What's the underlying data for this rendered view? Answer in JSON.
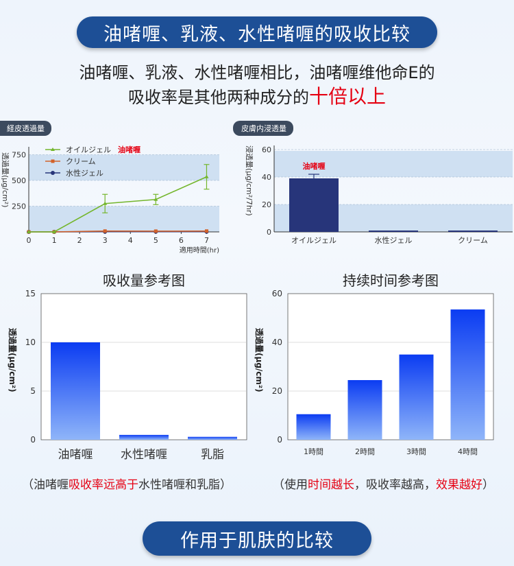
{
  "header": {
    "title": "油啫喱、乳液、水性啫喱的吸收比较",
    "line1": "油啫喱、乳液、水性啫喱相比，油啫喱维他命E的",
    "line2_a": "吸收率是其他两种成分的",
    "line2_b": "十倍以上"
  },
  "footer": {
    "title": "作用于肌肤的比较"
  },
  "captions": {
    "left_a": "（油啫喱",
    "left_b": "吸收率远高于",
    "left_c": "水性啫喱和乳脂）",
    "right_a": "（使用",
    "right_b": "时间越长",
    "right_c": "，吸收率越高，",
    "right_d": "效果越好",
    "right_e": "）"
  },
  "colors": {
    "pill": "#1d4f96",
    "highlight": "#e50012",
    "bar_navy": "#27357a",
    "bar_blue": "#1a46f0"
  },
  "chart_data": [
    {
      "id": "c1",
      "type": "line",
      "tag": "経皮透過量",
      "ylabel": "透過量(μg/cm²)",
      "xlabel": "適用時間(hr)",
      "x_ticks": [
        0,
        1,
        2,
        3,
        4,
        5,
        6,
        7
      ],
      "y_ticks": [
        250,
        500,
        750
      ],
      "xlim": [
        0,
        7.5
      ],
      "ylim": [
        0,
        800
      ],
      "series": [
        {
          "name": "オイルジェル",
          "name_note": "油啫喱",
          "color": "#74b62c",
          "marker": "triangle",
          "x": [
            0,
            1,
            3,
            5,
            7
          ],
          "y": [
            0,
            0,
            275,
            315,
            535
          ],
          "err": [
            0,
            0,
            90,
            50,
            120
          ]
        },
        {
          "name": "クリーム",
          "color": "#d2622b",
          "marker": "square",
          "x": [
            0,
            1,
            3,
            5,
            7
          ],
          "y": [
            0,
            0,
            8,
            7,
            8
          ],
          "err": [
            0,
            0,
            0,
            0,
            0
          ]
        },
        {
          "name": "水性ジェル",
          "color": "#27357a",
          "marker": "circle",
          "x": [
            0,
            1,
            3,
            5,
            7
          ],
          "y": [
            0,
            0,
            2,
            2,
            2
          ],
          "err": [
            0,
            0,
            0,
            0,
            0
          ]
        }
      ]
    },
    {
      "id": "c2",
      "type": "bar",
      "tag": "皮膚内浸透量",
      "ylabel": "浸透量(μg/cm²/7hr)",
      "categories": [
        "オイルジェル",
        "水性ジェル",
        "クリーム"
      ],
      "values": [
        39,
        1,
        1
      ],
      "err": [
        3,
        0,
        0
      ],
      "bar_label": "油啫喱",
      "y_ticks": [
        0,
        20,
        40,
        60
      ],
      "ylim": [
        0,
        60
      ]
    },
    {
      "id": "c3",
      "type": "bar",
      "title": "吸收量参考图",
      "ylabel": "透過量(μg/cm²)",
      "categories": [
        "油啫喱",
        "水性啫喱",
        "乳脂"
      ],
      "values": [
        10,
        0.5,
        0.3
      ],
      "y_ticks": [
        0,
        5,
        10,
        15
      ],
      "ylim": [
        0,
        15
      ]
    },
    {
      "id": "c4",
      "type": "bar",
      "title": "持续时间参考图",
      "ylabel": "透過量(μg/cm²)",
      "categories": [
        "1時間",
        "2時間",
        "3時間",
        "4時間"
      ],
      "values": [
        10.5,
        24.5,
        35,
        53.5
      ],
      "y_ticks": [
        0,
        20,
        40,
        60
      ],
      "ylim": [
        0,
        60
      ]
    }
  ]
}
